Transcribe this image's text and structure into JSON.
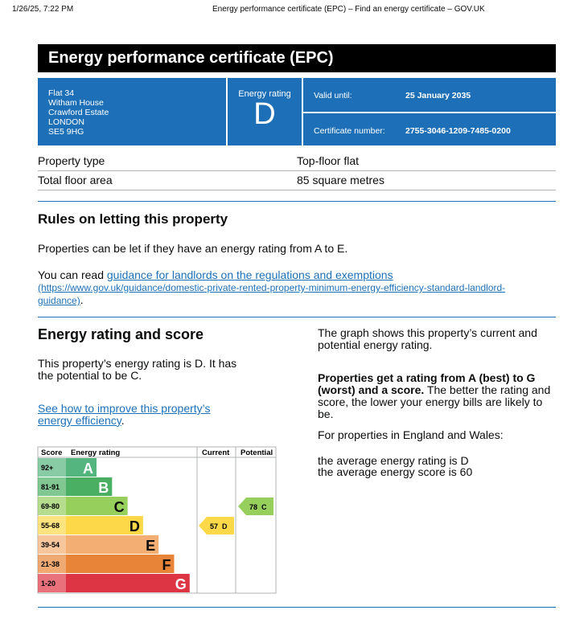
{
  "print_header": {
    "datetime": "1/26/25, 7:22 PM",
    "page_title": "Energy performance certificate (EPC) – Find an energy certificate – GOV.UK"
  },
  "header": {
    "title": "Energy performance certificate (EPC)"
  },
  "address": [
    "Flat 34",
    "Witham House",
    "Crawford Estate",
    "LONDON",
    "SE5 9HG"
  ],
  "rating_box": {
    "label": "Energy rating",
    "rating": "D"
  },
  "valid": {
    "label": "Valid until:",
    "value": "25 January 2035"
  },
  "certificate": {
    "label": "Certificate number:",
    "value": "2755-3046-1209-7485-0200"
  },
  "summary": {
    "rows": [
      [
        "Property type",
        "Top-floor flat"
      ],
      [
        "Total floor area",
        "85 square metres"
      ]
    ]
  },
  "letting": {
    "heading": "Rules on letting this property",
    "paragraph": "Properties can be let if they have an energy rating from A to E.",
    "read_prefix": "You can read ",
    "link_text": "guidance for landlords on the regulations and exemptions",
    "link_url": "(https://www.gov.uk/guidance/domestic-private-rented-property-minimum-energy-efficiency-standard-landlord-guidance)",
    "suffix": "."
  },
  "energy": {
    "heading": "Energy rating and score",
    "paragraph": "This property’s energy rating is D. It has the potential to be C.",
    "link_text": "See how to improve this property’s energy efficiency",
    "suffix": "."
  },
  "graph": {
    "headers": [
      "Score",
      "Energy rating",
      "Current",
      "Potential"
    ],
    "bands": [
      {
        "score": "92+",
        "letter": "A",
        "color": "#55b57f"
      },
      {
        "score": "81-91",
        "letter": "B",
        "color": "#4aaf62"
      },
      {
        "score": "69-80",
        "letter": "C",
        "color": "#96cf5c"
      },
      {
        "score": "55-68",
        "letter": "D",
        "color": "#fdd94a"
      },
      {
        "score": "39-54",
        "letter": "E",
        "color": "#f3ae74"
      },
      {
        "score": "21-38",
        "letter": "F",
        "color": "#e88437"
      },
      {
        "score": "1-20",
        "letter": "G",
        "color": "#de3544"
      }
    ],
    "current": {
      "score": 57,
      "letter": "D"
    },
    "potential": {
      "score": 78,
      "letter": "C"
    }
  },
  "side": {
    "graph_note": "The graph shows this property’s current and potential energy rating.",
    "bold": "Properties get a rating from A (best) to G (worst) and a score.",
    "rest": " The better the rating and score, the lower your energy bills are likely to be.",
    "region": "For properties in England and Wales:",
    "avg_rating": "the average energy rating is D",
    "avg_score": "the average energy score is 60"
  }
}
